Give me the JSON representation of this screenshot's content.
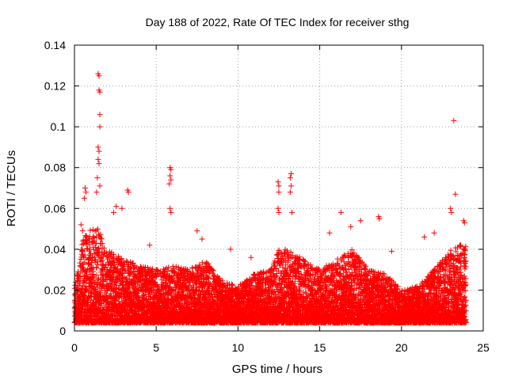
{
  "chart_data": {
    "type": "scatter",
    "title": "Day 188 of 2022, Rate Of TEC Index for receiver sthg",
    "xlabel": "GPS time / hours",
    "ylabel": "ROTI / TECUs",
    "xlim": [
      0,
      25
    ],
    "ylim": [
      0,
      0.14
    ],
    "xticks": [
      0,
      5,
      10,
      15,
      20,
      25
    ],
    "xtick_labels": [
      "0",
      "5",
      "10",
      "15",
      "20",
      "25"
    ],
    "yticks": [
      0,
      0.02,
      0.04,
      0.06,
      0.08,
      0.1,
      0.12,
      0.14
    ],
    "ytick_labels": [
      "0",
      "0.02",
      "0.04",
      "0.06",
      "0.08",
      "0.1",
      "0.12",
      "0.14"
    ],
    "grid": true,
    "marker": "+",
    "series": [
      {
        "name": "ROTI",
        "color": "#ff0000",
        "envelope_description": "Dense cloud of points 0.005-0.03 TECU/min across 0-24h",
        "envelope_x": [
          0,
          0.5,
          1.0,
          1.5,
          2.0,
          3.0,
          4.0,
          5.0,
          6.0,
          7.0,
          8.0,
          9.0,
          10.0,
          11.0,
          12.0,
          12.5,
          13.0,
          14.0,
          15.0,
          16.0,
          17.0,
          18.0,
          19.0,
          20.0,
          21.0,
          22.0,
          23.0,
          24.0
        ],
        "envelope_max": [
          0.02,
          0.045,
          0.05,
          0.05,
          0.04,
          0.035,
          0.032,
          0.03,
          0.032,
          0.03,
          0.035,
          0.025,
          0.022,
          0.028,
          0.03,
          0.04,
          0.04,
          0.035,
          0.03,
          0.035,
          0.04,
          0.03,
          0.028,
          0.02,
          0.022,
          0.03,
          0.04,
          0.045
        ],
        "highlights": [
          {
            "x": 1.45,
            "y": 0.126
          },
          {
            "x": 1.5,
            "y": 0.125
          },
          {
            "x": 1.5,
            "y": 0.118
          },
          {
            "x": 1.55,
            "y": 0.117
          },
          {
            "x": 1.55,
            "y": 0.106
          },
          {
            "x": 1.55,
            "y": 0.1
          },
          {
            "x": 1.45,
            "y": 0.09
          },
          {
            "x": 1.5,
            "y": 0.088
          },
          {
            "x": 1.45,
            "y": 0.084
          },
          {
            "x": 1.5,
            "y": 0.082
          },
          {
            "x": 1.4,
            "y": 0.075
          },
          {
            "x": 1.55,
            "y": 0.071
          },
          {
            "x": 0.65,
            "y": 0.07
          },
          {
            "x": 0.7,
            "y": 0.068
          },
          {
            "x": 0.6,
            "y": 0.065
          },
          {
            "x": 1.35,
            "y": 0.068
          },
          {
            "x": 3.25,
            "y": 0.069
          },
          {
            "x": 3.3,
            "y": 0.068
          },
          {
            "x": 2.55,
            "y": 0.061
          },
          {
            "x": 2.4,
            "y": 0.058
          },
          {
            "x": 2.9,
            "y": 0.06
          },
          {
            "x": 5.85,
            "y": 0.08
          },
          {
            "x": 5.9,
            "y": 0.079
          },
          {
            "x": 5.85,
            "y": 0.076
          },
          {
            "x": 5.9,
            "y": 0.074
          },
          {
            "x": 5.8,
            "y": 0.072
          },
          {
            "x": 5.85,
            "y": 0.06
          },
          {
            "x": 5.9,
            "y": 0.058
          },
          {
            "x": 12.45,
            "y": 0.073
          },
          {
            "x": 12.5,
            "y": 0.071
          },
          {
            "x": 12.5,
            "y": 0.068
          },
          {
            "x": 12.45,
            "y": 0.06
          },
          {
            "x": 12.5,
            "y": 0.058
          },
          {
            "x": 13.25,
            "y": 0.077
          },
          {
            "x": 13.2,
            "y": 0.075
          },
          {
            "x": 13.25,
            "y": 0.071
          },
          {
            "x": 13.2,
            "y": 0.068
          },
          {
            "x": 13.3,
            "y": 0.058
          },
          {
            "x": 16.3,
            "y": 0.058
          },
          {
            "x": 16.9,
            "y": 0.051
          },
          {
            "x": 17.5,
            "y": 0.054
          },
          {
            "x": 18.6,
            "y": 0.056
          },
          {
            "x": 18.65,
            "y": 0.055
          },
          {
            "x": 23.2,
            "y": 0.103
          },
          {
            "x": 23.3,
            "y": 0.067
          },
          {
            "x": 23.0,
            "y": 0.06
          },
          {
            "x": 23.05,
            "y": 0.058
          },
          {
            "x": 23.8,
            "y": 0.054
          },
          {
            "x": 23.85,
            "y": 0.053
          },
          {
            "x": 22.0,
            "y": 0.048
          },
          {
            "x": 21.4,
            "y": 0.046
          },
          {
            "x": 9.55,
            "y": 0.04
          },
          {
            "x": 10.8,
            "y": 0.036
          },
          {
            "x": 19.4,
            "y": 0.039
          },
          {
            "x": 7.5,
            "y": 0.049
          },
          {
            "x": 7.8,
            "y": 0.045
          },
          {
            "x": 4.6,
            "y": 0.042
          },
          {
            "x": 0.4,
            "y": 0.052
          },
          {
            "x": 0.5,
            "y": 0.049
          },
          {
            "x": 15.6,
            "y": 0.048
          }
        ]
      }
    ]
  }
}
